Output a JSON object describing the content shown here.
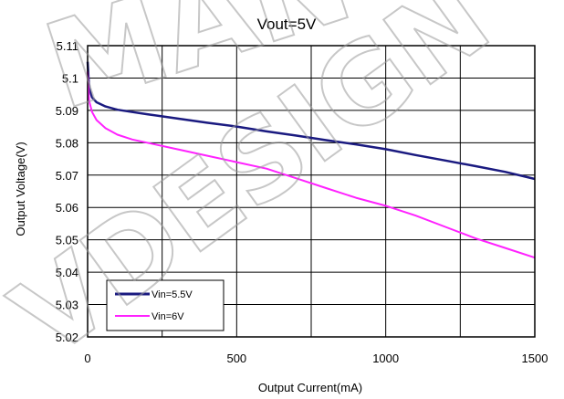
{
  "chart_data": {
    "type": "line",
    "title": "Vout=5V",
    "xlabel": "Output Current(mA)",
    "ylabel": "Output Voltage(V)",
    "xlim": [
      0,
      1500
    ],
    "ylim": [
      5.02,
      5.11
    ],
    "x_ticks": [
      0,
      500,
      1000,
      1500
    ],
    "x_tick_labels": [
      "0",
      "500",
      "1000",
      "1500"
    ],
    "y_ticks": [
      5.02,
      5.03,
      5.04,
      5.05,
      5.06,
      5.07,
      5.08,
      5.09,
      5.1,
      5.11
    ],
    "y_tick_labels": [
      "5.02",
      "5.03",
      "5.04",
      "5.05",
      "5.06",
      "5.07",
      "5.08",
      "5.09",
      "5.1",
      "5.11"
    ],
    "x_grid_step": 250,
    "grid": true,
    "legend_position": "bottom-left",
    "series": [
      {
        "name": "Vin=5.5V",
        "color": "#1a1a80",
        "points": [
          [
            0,
            5.105
          ],
          [
            5,
            5.097
          ],
          [
            15,
            5.094
          ],
          [
            30,
            5.0925
          ],
          [
            60,
            5.0912
          ],
          [
            100,
            5.0902
          ],
          [
            150,
            5.0895
          ],
          [
            200,
            5.0888
          ],
          [
            300,
            5.0875
          ],
          [
            400,
            5.0862
          ],
          [
            500,
            5.085
          ],
          [
            600,
            5.0835
          ],
          [
            700,
            5.0822
          ],
          [
            800,
            5.0808
          ],
          [
            900,
            5.0795
          ],
          [
            1000,
            5.078
          ],
          [
            1100,
            5.0762
          ],
          [
            1200,
            5.0745
          ],
          [
            1300,
            5.0728
          ],
          [
            1400,
            5.071
          ],
          [
            1500,
            5.0688
          ]
        ]
      },
      {
        "name": "Vin=6V",
        "color": "#ff22ff",
        "points": [
          [
            0,
            5.102
          ],
          [
            5,
            5.093
          ],
          [
            15,
            5.0895
          ],
          [
            30,
            5.087
          ],
          [
            60,
            5.0845
          ],
          [
            100,
            5.0825
          ],
          [
            150,
            5.081
          ],
          [
            200,
            5.08
          ],
          [
            300,
            5.078
          ],
          [
            400,
            5.076
          ],
          [
            500,
            5.074
          ],
          [
            600,
            5.072
          ],
          [
            700,
            5.069
          ],
          [
            800,
            5.066
          ],
          [
            900,
            5.063
          ],
          [
            1000,
            5.0605
          ],
          [
            1100,
            5.0575
          ],
          [
            1200,
            5.054
          ],
          [
            1300,
            5.0505
          ],
          [
            1400,
            5.0475
          ],
          [
            1500,
            5.0445
          ]
        ]
      }
    ]
  },
  "watermark": {
    "text": "VDESIGN",
    "text_top": "MAN",
    "color": "#9a9a9a"
  }
}
